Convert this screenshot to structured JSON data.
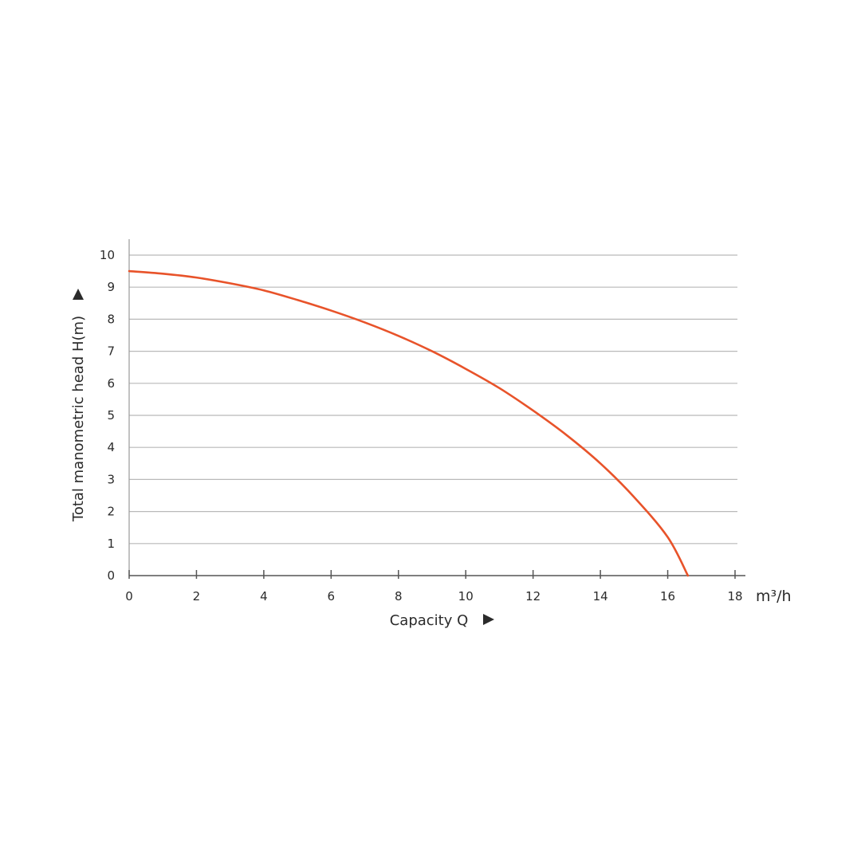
{
  "chart_data": {
    "type": "line",
    "xlabel": "Capacity Q",
    "ylabel": "Total manometric head H(m)",
    "x_unit": "m³/h",
    "xlim": [
      0,
      18
    ],
    "ylim": [
      0,
      10
    ],
    "x_ticks": [
      "0",
      "2",
      "4",
      "6",
      "8",
      "10",
      "12",
      "14",
      "16",
      "18"
    ],
    "y_ticks": [
      "0",
      "1",
      "2",
      "3",
      "4",
      "5",
      "6",
      "7",
      "8",
      "9",
      "10"
    ],
    "grid": "horizontal",
    "series": [
      {
        "color": "#e8532a",
        "x": [
          0,
          1,
          2,
          3,
          4,
          5,
          6,
          7,
          8,
          9,
          10,
          11,
          12,
          13,
          14,
          15,
          16,
          16.6
        ],
        "y": [
          9.5,
          9.42,
          9.3,
          9.12,
          8.9,
          8.6,
          8.27,
          7.9,
          7.48,
          7.0,
          6.45,
          5.85,
          5.15,
          4.38,
          3.5,
          2.45,
          1.2,
          0
        ]
      }
    ]
  }
}
